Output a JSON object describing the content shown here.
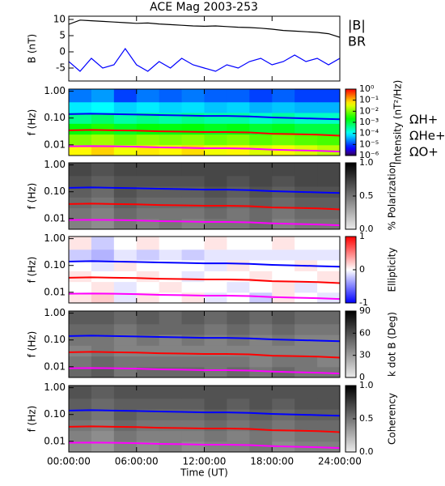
{
  "chart_data": [
    {
      "type": "line",
      "title": "ACE Mag 2003-253",
      "ylabel": "B (nT)",
      "x": [
        0,
        1,
        2,
        3,
        4,
        5,
        6,
        7,
        8,
        9,
        10,
        11,
        12,
        13,
        14,
        15,
        16,
        17,
        18,
        19,
        20,
        21,
        22,
        23,
        24
      ],
      "xlim": [
        0,
        24
      ],
      "xticks": [
        0,
        6,
        12,
        18,
        24
      ],
      "ylim": [
        -9,
        11
      ],
      "yticks": [
        -5,
        0,
        5,
        10
      ],
      "series": [
        {
          "name": "|B|",
          "color": "#000000",
          "values": [
            8.5,
            9.8,
            9.6,
            9.4,
            9.2,
            9.0,
            8.8,
            8.9,
            8.6,
            8.4,
            8.2,
            8.0,
            7.9,
            8.0,
            7.8,
            7.6,
            7.5,
            7.3,
            7.0,
            6.6,
            6.4,
            6.2,
            6.0,
            5.6,
            4.5
          ]
        },
        {
          "name": "BR",
          "color": "#0000ff",
          "values": [
            -3,
            -6,
            -2,
            -5,
            -4,
            1,
            -4,
            -6,
            -3,
            -5,
            -2,
            -4,
            -5,
            -6,
            -4,
            -5,
            -3,
            -2,
            -4,
            -3,
            -1,
            -3,
            -2,
            -4,
            -2
          ]
        }
      ]
    },
    {
      "type": "heatmap",
      "ylabel": "f (Hz)",
      "log_y": true,
      "xlim": [
        0,
        24
      ],
      "xticks": [
        0,
        6,
        12,
        18,
        24
      ],
      "ylim": [
        0.004,
        1.2
      ],
      "yticks": [
        0.01,
        {
          "value": 0.1,
          "label": "0.10"
        },
        {
          "value": 1,
          "label": "1.00"
        }
      ],
      "x_bins": [
        0,
        2,
        4,
        6,
        8,
        10,
        12,
        14,
        16,
        18,
        20,
        22,
        24
      ],
      "y_bins": [
        0.004,
        0.01,
        0.025,
        0.063,
        0.16,
        0.4,
        1.2
      ],
      "z": [
        [
          0.05,
          0.08,
          0.04,
          0.06,
          0.05,
          0.07,
          0.04,
          0.05,
          0.03,
          0.04,
          0.03,
          0.02
        ],
        [
          0.01,
          0.015,
          0.008,
          0.012,
          0.01,
          0.012,
          0.008,
          0.01,
          0.006,
          0.008,
          0.006,
          0.005
        ],
        [
          0.002,
          0.003,
          0.0015,
          0.002,
          0.0018,
          0.002,
          0.0015,
          0.0018,
          0.0012,
          0.0015,
          0.001,
          0.001
        ],
        [
          0.0004,
          0.0006,
          0.0003,
          0.0004,
          0.0003,
          0.0004,
          0.0003,
          0.0003,
          0.0002,
          0.0003,
          0.0002,
          0.0002
        ],
        [
          8e-05,
          0.0001,
          6e-05,
          8e-05,
          6e-05,
          7e-05,
          5e-05,
          6e-05,
          4e-05,
          5e-05,
          4e-05,
          4e-05
        ],
        [
          2e-05,
          3e-05,
          1e-05,
          2e-05,
          1.5e-05,
          2e-05,
          1.5e-05,
          1.5e-05,
          1e-05,
          1.5e-05,
          1e-05,
          1e-05
        ]
      ],
      "colorbar": {
        "label": "Intensity (nT²/Hz)",
        "cmap": "rainbow",
        "log": true,
        "lim": [
          1e-06,
          1
        ],
        "ticks": [
          {
            "value": 1,
            "label": "10⁰"
          },
          {
            "value": 0.1,
            "label": "10⁻¹"
          },
          {
            "value": 0.01,
            "label": "10⁻²"
          },
          {
            "value": 0.001,
            "label": "10⁻³"
          },
          {
            "value": 0.0001,
            "label": "10⁻⁴"
          },
          {
            "value": 1e-05,
            "label": "10⁻⁵"
          },
          {
            "value": 1e-06,
            "label": "10⁻⁶"
          }
        ]
      },
      "x": [
        0,
        2,
        4,
        6,
        8,
        10,
        12,
        14,
        16,
        18,
        20,
        22,
        24
      ],
      "series": [
        {
          "name": "ΩH+",
          "color": "#0000ff",
          "values": [
            0.14,
            0.145,
            0.14,
            0.135,
            0.13,
            0.125,
            0.12,
            0.12,
            0.115,
            0.105,
            0.1,
            0.095,
            0.09
          ]
        },
        {
          "name": "ΩHe+",
          "color": "#ff0000",
          "values": [
            0.035,
            0.036,
            0.035,
            0.034,
            0.032,
            0.031,
            0.03,
            0.03,
            0.029,
            0.026,
            0.025,
            0.024,
            0.022
          ]
        },
        {
          "name": "ΩO+",
          "color": "#ff00ff",
          "values": [
            0.0088,
            0.009,
            0.0088,
            0.0085,
            0.008,
            0.0078,
            0.0075,
            0.0075,
            0.0072,
            0.0066,
            0.0063,
            0.006,
            0.0056
          ]
        }
      ]
    },
    {
      "type": "heatmap",
      "ylabel": "f (Hz)",
      "log_y": true,
      "xlim": [
        0,
        24
      ],
      "xticks": [
        0,
        6,
        12,
        18,
        24
      ],
      "ylim": [
        0.004,
        1.2
      ],
      "yticks": [
        0.01,
        {
          "value": 0.1,
          "label": "0.10"
        },
        {
          "value": 1,
          "label": "1.00"
        }
      ],
      "x_bins": [
        0,
        2,
        4,
        6,
        8,
        10,
        12,
        14,
        16,
        18,
        20,
        22,
        24
      ],
      "y_bins": [
        0.004,
        0.01,
        0.025,
        0.063,
        0.16,
        0.4,
        1.2
      ],
      "z": [
        [
          0.45,
          0.4,
          0.5,
          0.45,
          0.5,
          0.45,
          0.5,
          0.5,
          0.55,
          0.45,
          0.5,
          0.5
        ],
        [
          0.5,
          0.45,
          0.55,
          0.5,
          0.5,
          0.5,
          0.55,
          0.5,
          0.55,
          0.5,
          0.55,
          0.55
        ],
        [
          0.55,
          0.5,
          0.6,
          0.55,
          0.55,
          0.55,
          0.6,
          0.55,
          0.6,
          0.55,
          0.6,
          0.6
        ],
        [
          0.6,
          0.55,
          0.65,
          0.6,
          0.6,
          0.6,
          0.65,
          0.6,
          0.65,
          0.6,
          0.65,
          0.65
        ],
        [
          0.65,
          0.6,
          0.65,
          0.65,
          0.65,
          0.65,
          0.7,
          0.65,
          0.7,
          0.65,
          0.7,
          0.7
        ],
        [
          0.7,
          0.65,
          0.7,
          0.7,
          0.7,
          0.7,
          0.7,
          0.7,
          0.7,
          0.7,
          0.7,
          0.7
        ]
      ],
      "colorbar": {
        "label": "% Polarization",
        "cmap": "gray",
        "lim": [
          0,
          1
        ],
        "ticks": [
          {
            "value": 0,
            "label": "0.0"
          },
          0.5,
          {
            "value": 1,
            "label": "1.0"
          }
        ]
      }
    },
    {
      "type": "heatmap",
      "ylabel": "f (Hz)",
      "log_y": true,
      "xlim": [
        0,
        24
      ],
      "xticks": [
        0,
        6,
        12,
        18,
        24
      ],
      "ylim": [
        0.004,
        1.2
      ],
      "yticks": [
        0.01,
        {
          "value": 0.1,
          "label": "0.10"
        },
        {
          "value": 1,
          "label": "1.00"
        }
      ],
      "x_bins": [
        0,
        2,
        4,
        6,
        8,
        10,
        12,
        14,
        16,
        18,
        20,
        22,
        24
      ],
      "y_bins": [
        0.004,
        0.01,
        0.025,
        0.063,
        0.16,
        0.4,
        1.2
      ],
      "z": [
        [
          0.1,
          0.2,
          -0.1,
          0.1,
          0,
          0.1,
          -0.1,
          0,
          -0.2,
          0.1,
          0,
          -0.1
        ],
        [
          0,
          0.1,
          -0.1,
          0,
          0.1,
          0,
          0,
          -0.1,
          0,
          0.1,
          -0.1,
          0
        ],
        [
          0.1,
          0,
          0,
          0.1,
          0,
          -0.1,
          0,
          0,
          0.1,
          0,
          0,
          0.1
        ],
        [
          0,
          -0.1,
          0.1,
          0,
          0,
          0,
          -0.1,
          0.1,
          0,
          0,
          0.1,
          0
        ],
        [
          -0.2,
          -0.3,
          -0.1,
          -0.2,
          -0.1,
          -0.2,
          -0.1,
          -0.1,
          -0.1,
          -0.1,
          -0.1,
          -0.1
        ],
        [
          0.1,
          -0.2,
          0,
          0.1,
          0,
          0,
          0.1,
          0,
          0,
          0.1,
          0,
          0
        ]
      ],
      "colorbar": {
        "label": "Ellipticity",
        "cmap": "bwr",
        "lim": [
          -1,
          1
        ],
        "ticks": [
          -1,
          0,
          1
        ]
      }
    },
    {
      "type": "heatmap",
      "ylabel": "f (Hz)",
      "log_y": true,
      "xlim": [
        0,
        24
      ],
      "xticks": [
        0,
        6,
        12,
        18,
        24
      ],
      "ylim": [
        0.004,
        1.2
      ],
      "yticks": [
        0.01,
        {
          "value": 0.1,
          "label": "0.10"
        },
        {
          "value": 1,
          "label": "1.00"
        }
      ],
      "x_bins": [
        0,
        2,
        4,
        6,
        8,
        10,
        12,
        14,
        16,
        18,
        20,
        22,
        24
      ],
      "y_bins": [
        0.004,
        0.01,
        0.025,
        0.063,
        0.16,
        0.4,
        1.2
      ],
      "z": [
        [
          50,
          55,
          45,
          50,
          50,
          50,
          45,
          50,
          45,
          50,
          45,
          45
        ],
        [
          45,
          50,
          45,
          45,
          45,
          45,
          45,
          45,
          40,
          45,
          45,
          40
        ],
        [
          40,
          45,
          40,
          40,
          40,
          40,
          40,
          40,
          40,
          40,
          40,
          40
        ],
        [
          45,
          45,
          40,
          45,
          40,
          45,
          40,
          45,
          40,
          45,
          40,
          40
        ],
        [
          50,
          50,
          45,
          50,
          50,
          50,
          45,
          50,
          45,
          50,
          45,
          45
        ],
        [
          55,
          55,
          50,
          55,
          50,
          55,
          50,
          55,
          50,
          55,
          50,
          50
        ]
      ],
      "colorbar": {
        "label": "k dot B (Deg)",
        "cmap": "gray",
        "lim": [
          0,
          90
        ],
        "ticks": [
          0,
          30,
          60,
          90
        ]
      }
    },
    {
      "type": "heatmap",
      "ylabel": "f (Hz)",
      "log_y": true,
      "xlabel": "Time (UT)",
      "xlim": [
        0,
        24
      ],
      "xticks": [
        {
          "value": 0,
          "label": "00:00:00"
        },
        {
          "value": 6,
          "label": "06:00:00"
        },
        {
          "value": 12,
          "label": "12:00:00"
        },
        {
          "value": 18,
          "label": "18:00:00"
        },
        {
          "value": 24,
          "label": "24:00:00"
        }
      ],
      "ylim": [
        0.004,
        1.2
      ],
      "yticks": [
        0.01,
        {
          "value": 0.1,
          "label": "0.10"
        },
        {
          "value": 1,
          "label": "1.00"
        }
      ],
      "x_bins": [
        0,
        2,
        4,
        6,
        8,
        10,
        12,
        14,
        16,
        18,
        20,
        22,
        24
      ],
      "y_bins": [
        0.004,
        0.01,
        0.025,
        0.063,
        0.16,
        0.4,
        1.2
      ],
      "z": [
        [
          0.4,
          0.35,
          0.45,
          0.4,
          0.45,
          0.4,
          0.45,
          0.45,
          0.5,
          0.4,
          0.45,
          0.45
        ],
        [
          0.45,
          0.4,
          0.5,
          0.45,
          0.45,
          0.45,
          0.5,
          0.45,
          0.5,
          0.45,
          0.5,
          0.5
        ],
        [
          0.5,
          0.45,
          0.55,
          0.5,
          0.5,
          0.5,
          0.55,
          0.5,
          0.55,
          0.5,
          0.55,
          0.55
        ],
        [
          0.55,
          0.5,
          0.6,
          0.55,
          0.55,
          0.55,
          0.6,
          0.55,
          0.6,
          0.55,
          0.6,
          0.6
        ],
        [
          0.6,
          0.55,
          0.6,
          0.6,
          0.6,
          0.6,
          0.65,
          0.6,
          0.65,
          0.6,
          0.65,
          0.65
        ],
        [
          0.65,
          0.6,
          0.65,
          0.65,
          0.65,
          0.65,
          0.65,
          0.65,
          0.65,
          0.65,
          0.65,
          0.65
        ]
      ],
      "colorbar": {
        "label": "Coherency",
        "cmap": "gray",
        "lim": [
          0,
          1
        ],
        "ticks": [
          {
            "value": 0,
            "label": "0.0"
          },
          0.5,
          {
            "value": 1,
            "label": "1.0"
          }
        ]
      }
    }
  ]
}
